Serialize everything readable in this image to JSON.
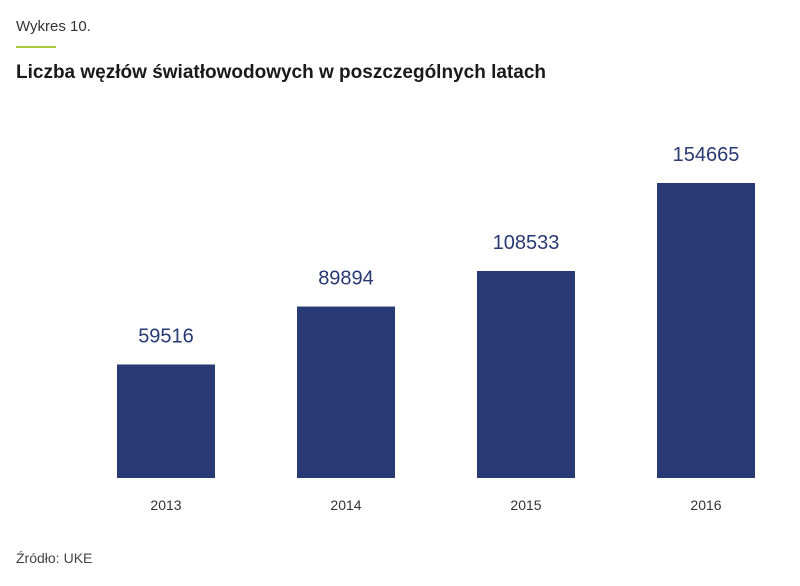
{
  "figure_label": "Wykres 10.",
  "title": "Liczba węzłów światłowodowych w poszczególnych latach",
  "source": {
    "label": "Źródło:",
    "value": "UKE"
  },
  "colors": {
    "bar": "#283a73",
    "value_label": "#283a73",
    "accent": "#a8c93a",
    "axis": "#333333"
  },
  "chart_data": {
    "type": "bar",
    "title": "Liczba węzłów światłowodowych w poszczególnych latach",
    "categories": [
      "2013",
      "2014",
      "2015",
      "2016"
    ],
    "values": [
      59516,
      89894,
      108533,
      154665
    ],
    "xlabel": "",
    "ylabel": "",
    "ylim": [
      0,
      154665
    ],
    "grid": false,
    "legend": "none",
    "data_labels": true
  }
}
